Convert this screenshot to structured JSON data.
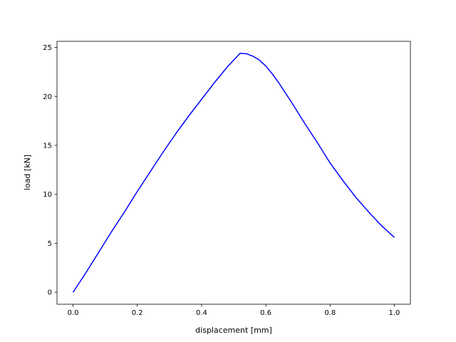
{
  "chart_data": {
    "type": "line",
    "x_label": "displacement [mm]",
    "y_label": "load [kN]",
    "x": [
      0,
      0.04,
      0.08,
      0.12,
      0.16,
      0.2,
      0.24,
      0.28,
      0.32,
      0.36,
      0.4,
      0.44,
      0.48,
      0.52,
      0.54,
      0.56,
      0.58,
      0.6,
      0.62,
      0.64,
      0.68,
      0.72,
      0.76,
      0.8,
      0.84,
      0.88,
      0.92,
      0.96,
      1.0
    ],
    "series": [
      {
        "color": "#0000ff",
        "values": [
          0,
          2.0,
          4.1,
          6.2,
          8.2,
          10.3,
          12.3,
          14.3,
          16.2,
          18.0,
          19.7,
          21.4,
          23.0,
          24.4,
          24.35,
          24.1,
          23.7,
          23.1,
          22.3,
          21.4,
          19.4,
          17.3,
          15.3,
          13.2,
          11.4,
          9.7,
          8.2,
          6.8,
          5.6
        ]
      }
    ],
    "xlim": [
      -0.05,
      1.05
    ],
    "ylim": [
      -1.22,
      25.62
    ],
    "xticks": [
      {
        "value": 0,
        "label": "0.0"
      },
      0.2,
      0.4,
      0.6,
      0.8,
      {
        "value": 1,
        "label": "1.0"
      }
    ],
    "yticks": [
      0,
      5,
      10,
      15,
      20,
      25
    ],
    "grid": false
  }
}
